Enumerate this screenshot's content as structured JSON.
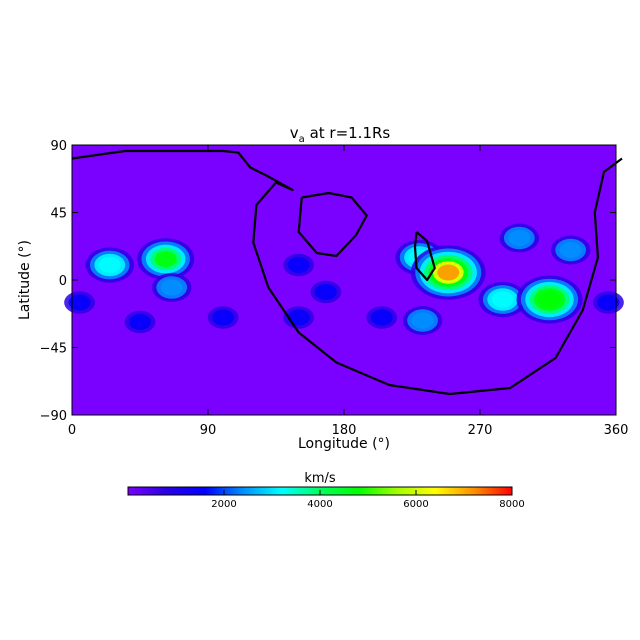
{
  "chart_data": {
    "type": "heatmap",
    "title": "v",
    "title_subscript": "a",
    "title_rest": " at r=1.1Rs",
    "xlabel": "Longitude (°)",
    "ylabel": "Latitude (°)",
    "xlim": [
      0,
      360
    ],
    "ylim": [
      -90,
      90
    ],
    "xticks": [
      "0",
      "90",
      "180",
      "270",
      "360"
    ],
    "xtick_values": [
      0,
      90,
      180,
      270,
      360
    ],
    "yticks": [
      "90",
      "45",
      "0",
      "−45",
      "−90"
    ],
    "ytick_values": [
      90,
      45,
      0,
      -45,
      -90
    ],
    "colorbar": {
      "label": "km/s",
      "range": [
        0,
        8000
      ],
      "ticks": [
        "2000",
        "4000",
        "6000",
        "8000"
      ],
      "tick_values": [
        2000,
        4000,
        6000,
        8000
      ],
      "colors": [
        "#7a00ff",
        "#2a00e6",
        "#0000ff",
        "#0090ff",
        "#00ffff",
        "#00ff60",
        "#00ff00",
        "#a0ff00",
        "#ffff00",
        "#ff9000",
        "#ff0000"
      ]
    },
    "background_value": 400,
    "hotspots": [
      {
        "lon": 25,
        "lat": 10,
        "value": 3000
      },
      {
        "lon": 62,
        "lat": 14,
        "value": 4800
      },
      {
        "lon": 66,
        "lat": -5,
        "value": 2500
      },
      {
        "lon": 5,
        "lat": -15,
        "value": 1800
      },
      {
        "lon": 45,
        "lat": -28,
        "value": 1500
      },
      {
        "lon": 100,
        "lat": -25,
        "value": 1500
      },
      {
        "lon": 150,
        "lat": -25,
        "value": 1600
      },
      {
        "lon": 150,
        "lat": 10,
        "value": 1500
      },
      {
        "lon": 168,
        "lat": -8,
        "value": 1400
      },
      {
        "lon": 205,
        "lat": -25,
        "value": 1800
      },
      {
        "lon": 232,
        "lat": -27,
        "value": 2000
      },
      {
        "lon": 230,
        "lat": 15,
        "value": 3000
      },
      {
        "lon": 249,
        "lat": 5,
        "value": 6800
      },
      {
        "lon": 285,
        "lat": -13,
        "value": 3000
      },
      {
        "lon": 296,
        "lat": 28,
        "value": 2000
      },
      {
        "lon": 316,
        "lat": -13,
        "value": 5000
      },
      {
        "lon": 330,
        "lat": 20,
        "value": 2400
      },
      {
        "lon": 355,
        "lat": -15,
        "value": 1800
      }
    ],
    "contours": [
      {
        "name": "polarity-inversion-line",
        "points": [
          [
            0,
            81
          ],
          [
            35,
            86
          ],
          [
            72,
            86
          ],
          [
            100,
            86
          ],
          [
            110,
            85
          ],
          [
            118,
            75
          ],
          [
            128,
            70
          ],
          [
            146,
            60
          ],
          [
            135,
            65
          ],
          [
            122,
            50
          ],
          [
            120,
            25
          ],
          [
            130,
            -5
          ],
          [
            150,
            -35
          ],
          [
            175,
            -55
          ],
          [
            210,
            -70
          ],
          [
            250,
            -76
          ],
          [
            290,
            -72
          ],
          [
            320,
            -52
          ],
          [
            338,
            -20
          ],
          [
            348,
            15
          ],
          [
            346,
            45
          ],
          [
            352,
            72
          ],
          [
            364,
            81
          ]
        ]
      },
      {
        "name": "closed-contour-1",
        "points": [
          [
            152,
            55
          ],
          [
            170,
            58
          ],
          [
            185,
            55
          ],
          [
            195,
            43
          ],
          [
            188,
            30
          ],
          [
            175,
            16
          ],
          [
            162,
            18
          ],
          [
            150,
            32
          ],
          [
            152,
            55
          ]
        ]
      },
      {
        "name": "closed-contour-2",
        "points": [
          [
            228,
            32
          ],
          [
            235,
            26
          ],
          [
            240,
            8
          ],
          [
            235,
            0
          ],
          [
            228,
            8
          ],
          [
            227,
            22
          ],
          [
            228,
            32
          ]
        ]
      }
    ]
  }
}
